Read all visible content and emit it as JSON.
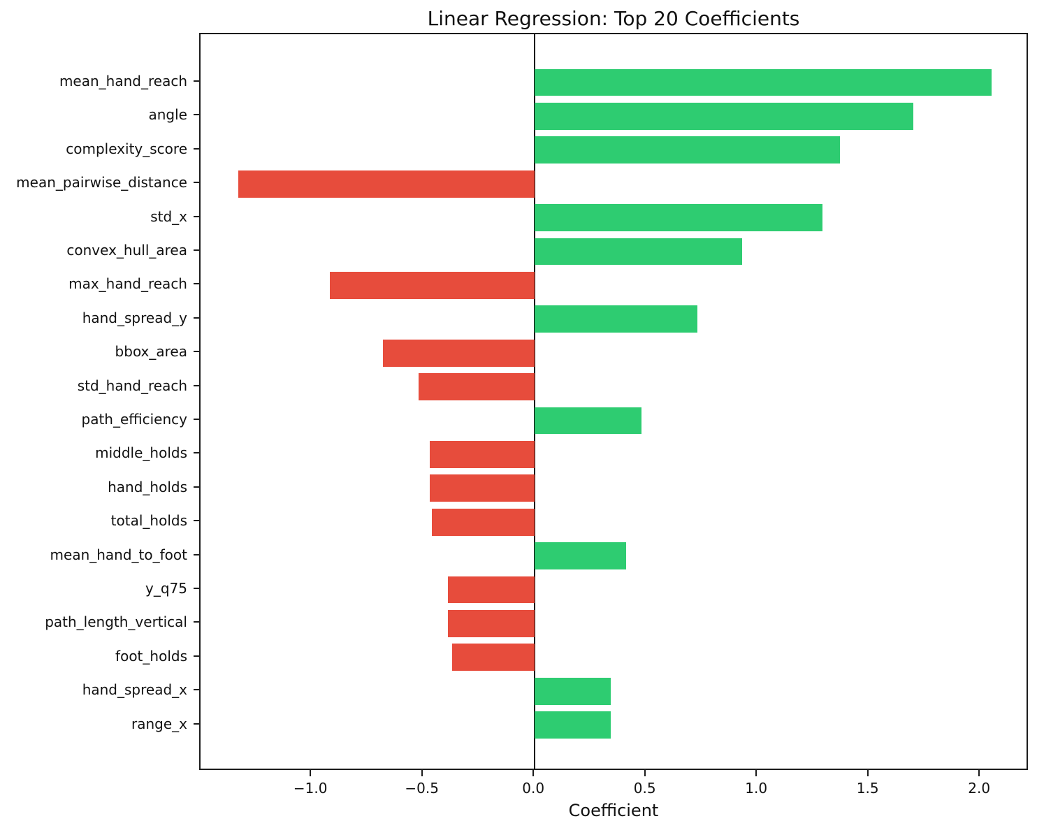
{
  "chart_data": {
    "type": "bar",
    "orientation": "horizontal",
    "title": "Linear Regression: Top 20 Coefficients",
    "xlabel": "Coefficient",
    "ylabel": "",
    "grid": false,
    "legend": null,
    "zero_line": true,
    "xlim": [
      -1.499,
      2.219
    ],
    "x_ticks": [
      -1.0,
      -0.5,
      0.0,
      0.5,
      1.0,
      1.5,
      2.0
    ],
    "x_tick_labels": [
      "−1.0",
      "−0.5",
      "0.0",
      "0.5",
      "1.0",
      "1.5",
      "2.0"
    ],
    "categories": [
      "mean_hand_reach",
      "angle",
      "complexity_score",
      "mean_pairwise_distance",
      "std_x",
      "convex_hull_area",
      "max_hand_reach",
      "hand_spread_y",
      "bbox_area",
      "std_hand_reach",
      "path_efficiency",
      "middle_holds",
      "hand_holds",
      "total_holds",
      "mean_hand_to_foot",
      "y_q75",
      "path_length_vertical",
      "foot_holds",
      "hand_spread_x",
      "range_x"
    ],
    "values": [
      2.05,
      1.7,
      1.37,
      -1.33,
      1.29,
      0.93,
      -0.92,
      0.73,
      -0.68,
      -0.52,
      0.48,
      -0.47,
      -0.47,
      -0.46,
      0.41,
      -0.39,
      -0.39,
      -0.37,
      0.34,
      0.34
    ],
    "colors": {
      "positive": "#2ecc71",
      "negative": "#e74c3c",
      "spine": "#1c1c1c",
      "text": "#111111",
      "background": "#ffffff"
    }
  }
}
